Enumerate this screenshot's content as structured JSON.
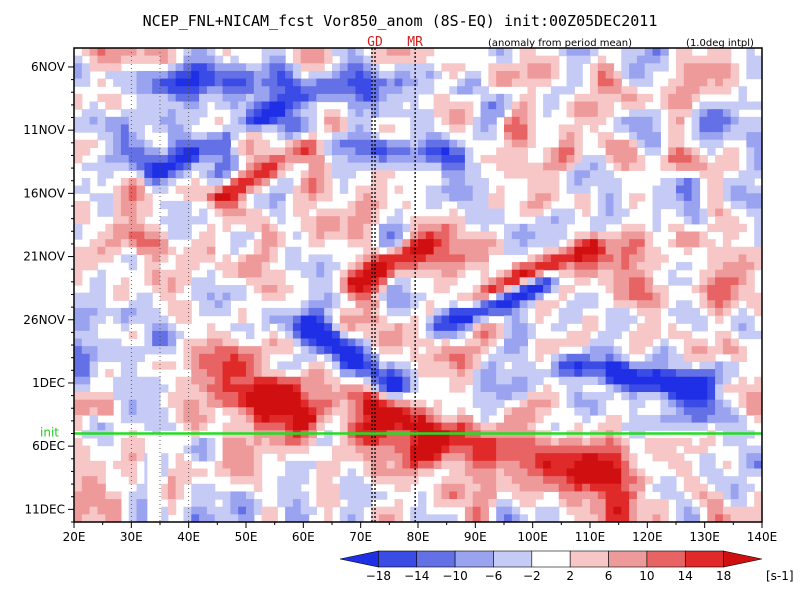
{
  "chart_data": {
    "type": "heatmap",
    "title": "NCEP_FNL+NICAM_fcst Vor850_anom (8S-EQ) init:00Z05DEC2011",
    "subtitle": "(anomaly from period mean)",
    "note": "(1.0deg intpl)",
    "x_ticks": [
      "20E",
      "30E",
      "40E",
      "50E",
      "60E",
      "70E",
      "80E",
      "90E",
      "100E",
      "110E",
      "120E",
      "130E",
      "140E"
    ],
    "x_values": [
      20,
      30,
      40,
      50,
      60,
      70,
      80,
      90,
      100,
      110,
      120,
      130,
      140
    ],
    "xlim": [
      20,
      140
    ],
    "y_ticks": [
      "6NOV",
      "11NOV",
      "16NOV",
      "21NOV",
      "26NOV",
      "1DEC",
      "6DEC",
      "11DEC"
    ],
    "y_day_index": [
      0,
      5,
      10,
      15,
      20,
      25,
      30,
      35
    ],
    "ylim_days": [
      -1.5,
      36
    ],
    "init_label": "init",
    "init_day_index": 29,
    "markers": [
      {
        "label": "GD",
        "lon": 72.5
      },
      {
        "label": "MR",
        "lon": 79.5
      }
    ],
    "colorbar": {
      "labels": [
        "−18",
        "−14",
        "−10",
        "−6",
        "−2",
        "2",
        "6",
        "10",
        "14",
        "18"
      ],
      "values": [
        -18,
        -14,
        -10,
        -6,
        -2,
        2,
        6,
        10,
        14,
        18
      ],
      "unit": "[s-1]",
      "colors": [
        "#1f2fe6",
        "#3b4be6",
        "#6470e6",
        "#9aa3ef",
        "#c6cbf6",
        "#ffffff",
        "#f7c7c7",
        "#ef9a9a",
        "#e86464",
        "#e02a2a",
        "#d01010"
      ]
    }
  }
}
